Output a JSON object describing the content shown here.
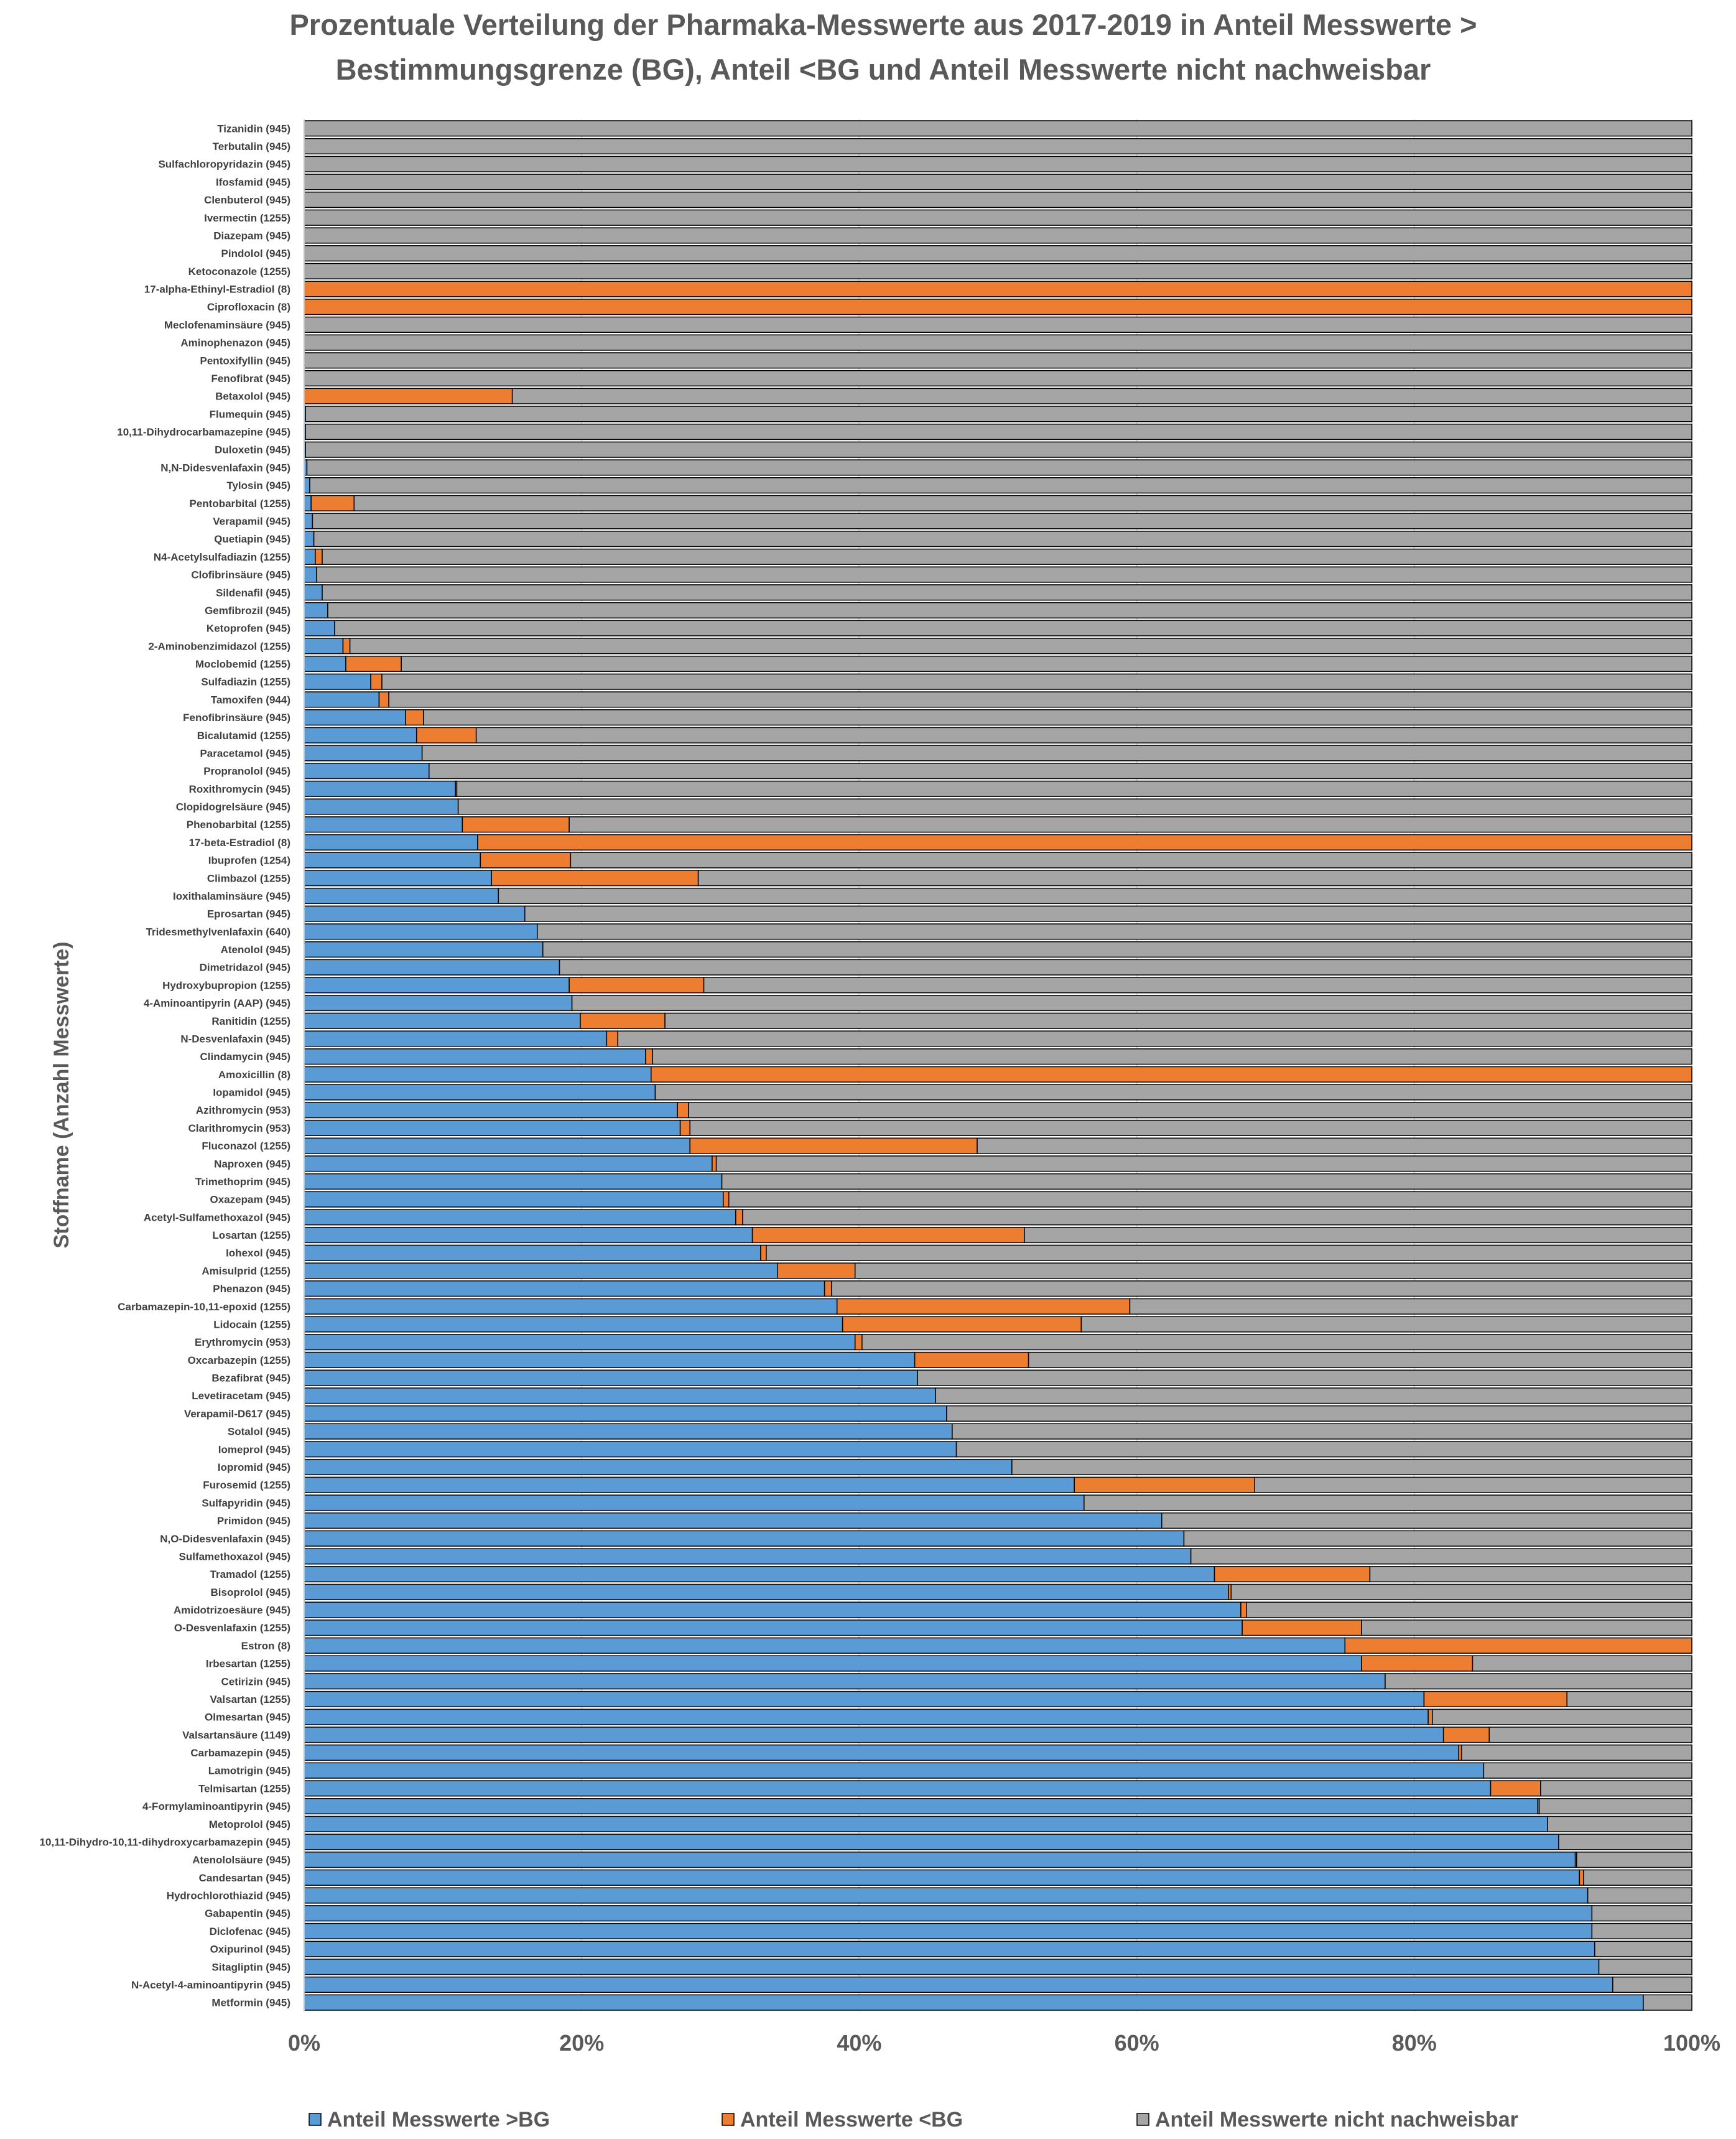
{
  "chart_data": {
    "type": "bar",
    "orientation": "horizontal",
    "stacked": "percent",
    "title_line1": "Prozentuale Verteilung der Pharmaka-Messwerte aus 2017-2019 in Anteil Messwerte >",
    "title_line2": "Bestimmungsgrenze (BG),  Anteil <BG und Anteil Messwerte nicht nachweisbar",
    "ylabel": "Stoffname (Anzahl Messwerte)",
    "xlabel": "",
    "xlim": [
      0,
      100
    ],
    "xticks": [
      "0%",
      "20%",
      "40%",
      "60%",
      "80%",
      "100%"
    ],
    "legend_position": "bottom",
    "colors": {
      "above_bg": "#5b9bd5",
      "below_bg": "#ed7d31",
      "not_detected": "#a5a5a5",
      "bar_edge": "#000000"
    },
    "categories": [
      "Tizanidin (945)",
      "Terbutalin (945)",
      "Sulfachloropyridazin (945)",
      "Ifosfamid (945)",
      "Clenbuterol (945)",
      "Ivermectin (1255)",
      "Diazepam (945)",
      "Pindolol (945)",
      "Ketoconazole (1255)",
      "17-alpha-Ethinyl-Estradiol (8)",
      "Ciprofloxacin (8)",
      "Meclofenaminsäure (945)",
      "Aminophenazon (945)",
      "Pentoxifyllin (945)",
      "Fenofibrat (945)",
      "Betaxolol (945)",
      "Flumequin (945)",
      "10,11-Dihydrocarbamazepine (945)",
      "Duloxetin (945)",
      "N,N-Didesvenlafaxin (945)",
      "Tylosin (945)",
      "Pentobarbital (1255)",
      "Verapamil (945)",
      "Quetiapin (945)",
      "N4-Acetylsulfadiazin (1255)",
      "Clofibrinsäure (945)",
      "Sildenafil (945)",
      "Gemfibrozil (945)",
      "Ketoprofen (945)",
      "2-Aminobenzimidazol (1255)",
      "Moclobemid (1255)",
      "Sulfadiazin (1255)",
      "Tamoxifen (944)",
      "Fenofibrinsäure (945)",
      "Bicalutamid (1255)",
      "Paracetamol (945)",
      "Propranolol (945)",
      "Roxithromycin (945)",
      "Clopidogrelsäure (945)",
      "Phenobarbital (1255)",
      "17-beta-Estradiol (8)",
      "Ibuprofen (1254)",
      "Climbazol (1255)",
      "Ioxithalaminsäure (945)",
      "Eprosartan (945)",
      "Tridesmethylvenlafaxin (640)",
      "Atenolol (945)",
      "Dimetridazol (945)",
      "Hydroxybupropion (1255)",
      "4-Aminoantipyrin (AAP) (945)",
      "Ranitidin (1255)",
      "N-Desvenlafaxin (945)",
      "Clindamycin (945)",
      "Amoxicillin (8)",
      "Iopamidol (945)",
      "Azithromycin (953)",
      "Clarithromycin (953)",
      "Fluconazol (1255)",
      "Naproxen (945)",
      "Trimethoprim (945)",
      "Oxazepam (945)",
      "Acetyl-Sulfamethoxazol (945)",
      "Losartan (1255)",
      "Iohexol (945)",
      "Amisulprid (1255)",
      "Phenazon (945)",
      "Carbamazepin-10,11-epoxid (1255)",
      "Lidocain (1255)",
      "Erythromycin (953)",
      "Oxcarbazepin (1255)",
      "Bezafibrat (945)",
      "Levetiracetam (945)",
      "Verapamil-D617 (945)",
      "Sotalol (945)",
      "Iomeprol (945)",
      "Iopromid (945)",
      "Furosemid (1255)",
      "Sulfapyridin (945)",
      "Primidon (945)",
      "N,O-Didesvenlafaxin (945)",
      "Sulfamethoxazol (945)",
      "Tramadol (1255)",
      "Bisoprolol (945)",
      "Amidotrizoesäure (945)",
      "O-Desvenlafaxin (1255)",
      "Estron (8)",
      "Irbesartan (1255)",
      "Cetirizin (945)",
      "Valsartan (1255)",
      "Olmesartan (945)",
      "Valsartansäure (1149)",
      "Carbamazepin (945)",
      "Lamotrigin (945)",
      "Telmisartan (1255)",
      "4-Formylaminoantipyrin (945)",
      "Metoprolol (945)",
      "10,11-Dihydro-10,11-dihydroxycarbamazepin (945)",
      "Atenololsäure (945)",
      "Candesartan (945)",
      "Hydrochlorothiazid (945)",
      "Gabapentin (945)",
      "Diclofenac (945)",
      "Oxipurinol (945)",
      "Sitagliptin (945)",
      "N-Acetyl-4-aminoantipyrin (945)",
      "Metformin (945)"
    ],
    "series": [
      {
        "name": "Anteil Messwerte >BG",
        "values": [
          0,
          0,
          0,
          0,
          0,
          0,
          0,
          0,
          0,
          0,
          0,
          0,
          0,
          0,
          0,
          0,
          0.1,
          0.1,
          0.1,
          0.2,
          0.4,
          0.5,
          0.6,
          0.7,
          0.8,
          0.9,
          1.3,
          1.7,
          2.2,
          2.8,
          3.0,
          4.8,
          5.4,
          7.3,
          8.1,
          8.5,
          9.0,
          10.9,
          11.1,
          11.4,
          12.5,
          12.7,
          13.5,
          14.0,
          15.9,
          16.8,
          17.2,
          18.4,
          19.1,
          19.3,
          19.9,
          21.8,
          24.6,
          25.0,
          25.3,
          26.9,
          27.1,
          27.8,
          29.4,
          30.1,
          30.2,
          31.1,
          32.3,
          32.9,
          34.1,
          37.5,
          38.4,
          38.8,
          39.7,
          44.0,
          44.2,
          45.5,
          46.3,
          46.7,
          47.0,
          51.0,
          55.5,
          56.2,
          61.8,
          63.4,
          63.9,
          65.6,
          66.6,
          67.5,
          67.6,
          75.0,
          76.2,
          77.9,
          80.7,
          81.0,
          82.1,
          83.2,
          85.0,
          85.5,
          88.9,
          89.6,
          90.4,
          91.6,
          91.9,
          92.5,
          92.8,
          92.8,
          93.0,
          93.3,
          94.3,
          96.5
        ]
      },
      {
        "name": "Anteil Messwerte <BG",
        "values": [
          0,
          0,
          0,
          0,
          0,
          0,
          0,
          0,
          0,
          100,
          100,
          0,
          0,
          0,
          0,
          15.0,
          0,
          0,
          0,
          0,
          0,
          3.1,
          0,
          0,
          0.5,
          0,
          0,
          0,
          0,
          0.5,
          4.0,
          0.8,
          0.7,
          1.3,
          4.3,
          0,
          0,
          0.1,
          0,
          7.7,
          87.5,
          6.5,
          14.9,
          0,
          0,
          0,
          0,
          0,
          9.7,
          0,
          6.1,
          0.8,
          0.5,
          75.0,
          0,
          0.8,
          0.7,
          20.7,
          0.3,
          0,
          0.4,
          0.5,
          19.6,
          0.4,
          5.6,
          0.5,
          21.1,
          17.2,
          0.5,
          8.2,
          0,
          0,
          0,
          0,
          0,
          0,
          13.0,
          0,
          0,
          0,
          0,
          11.2,
          0.2,
          0.4,
          8.6,
          25.0,
          8.0,
          0,
          10.3,
          0.3,
          3.3,
          0.2,
          0,
          3.6,
          0.1,
          0,
          0,
          0.1,
          0.3,
          0,
          0,
          0,
          0,
          0,
          0,
          0
        ]
      },
      {
        "name": "Anteil Messwerte nicht nachweisbar",
        "values": [
          100,
          100,
          100,
          100,
          100,
          100,
          100,
          100,
          100,
          0,
          0,
          100,
          100,
          100,
          100,
          85.0,
          99.9,
          99.9,
          99.9,
          99.8,
          99.6,
          96.4,
          99.4,
          99.3,
          98.7,
          99.1,
          98.7,
          98.3,
          97.8,
          96.7,
          93.0,
          94.4,
          93.9,
          91.4,
          87.6,
          91.5,
          91.0,
          89.0,
          88.9,
          80.9,
          0,
          80.8,
          71.6,
          86.0,
          84.1,
          83.2,
          82.8,
          81.6,
          71.2,
          80.7,
          74.0,
          77.4,
          74.9,
          0,
          74.7,
          72.3,
          72.2,
          51.5,
          70.3,
          69.9,
          69.4,
          68.4,
          48.1,
          66.7,
          60.3,
          62.0,
          40.5,
          44.0,
          59.8,
          47.8,
          55.8,
          54.5,
          53.7,
          53.3,
          53.0,
          49.0,
          31.5,
          43.8,
          38.2,
          36.6,
          36.1,
          23.2,
          33.2,
          32.1,
          23.8,
          0,
          15.8,
          22.1,
          9.0,
          18.7,
          14.6,
          16.6,
          15.0,
          10.9,
          11.0,
          10.4,
          9.6,
          8.3,
          7.8,
          7.5,
          7.2,
          7.2,
          7.0,
          6.7,
          5.7,
          3.5
        ]
      }
    ]
  }
}
